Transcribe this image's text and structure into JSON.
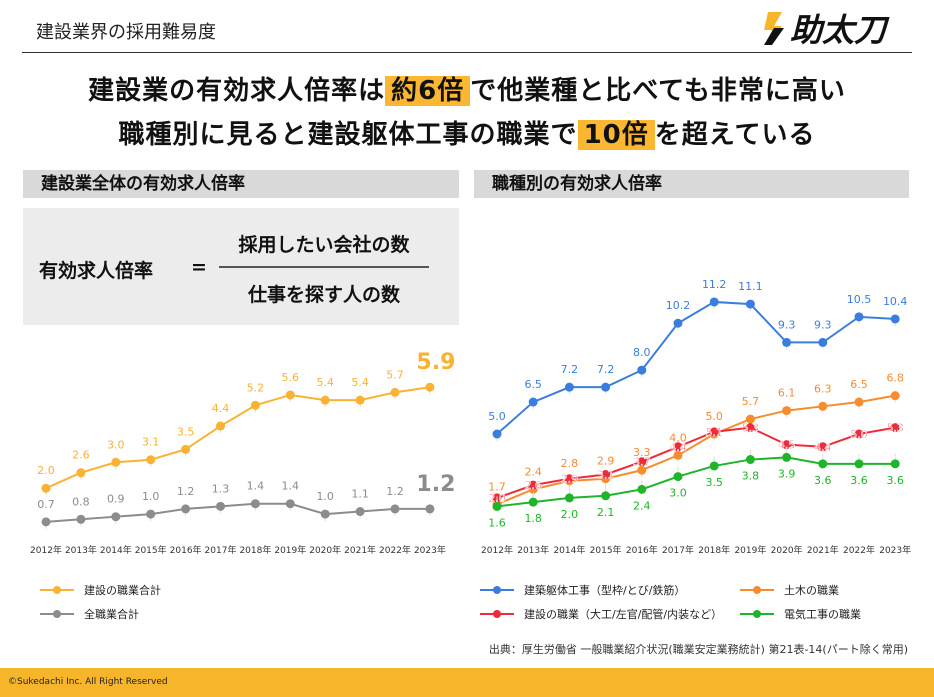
{
  "header": {
    "topic": "建設業界の採用難易度",
    "logo_text": "助太刀"
  },
  "headline": {
    "line1_pre": "建設業の有効求人倍率は",
    "line1_hl": "約6倍",
    "line1_post": "で他業種と比べても非常に高い",
    "line2_pre": "職種別に見ると建設躯体工事の職業で",
    "line2_hl": "10倍",
    "line2_post": "を超えている"
  },
  "left": {
    "section_title": "建設業全体の有効求人倍率",
    "formula": {
      "lhs": "有効求人倍率",
      "eq": "=",
      "numerator": "採用したい会社の数",
      "denominator": "仕事を探す人の数"
    }
  },
  "right": {
    "section_title": "職種別の有効求人倍率"
  },
  "chart_data": [
    {
      "type": "line",
      "categories": [
        "2012年",
        "2013年",
        "2014年",
        "2015年",
        "2016年",
        "2017年",
        "2018年",
        "2019年",
        "2020年",
        "2021年",
        "2022年",
        "2023年"
      ],
      "series": [
        {
          "name": "建設の職業合計",
          "color": "#f9b233",
          "values": [
            2.0,
            2.6,
            3.0,
            3.1,
            3.5,
            4.4,
            5.2,
            5.6,
            5.4,
            5.4,
            5.7,
            5.9
          ]
        },
        {
          "name": "全職業合計",
          "color": "#8c8c8c",
          "values": [
            0.7,
            0.8,
            0.9,
            1.0,
            1.2,
            1.3,
            1.4,
            1.4,
            1.0,
            1.1,
            1.2,
            1.2
          ]
        }
      ],
      "legend": "bottom"
    },
    {
      "type": "line",
      "categories": [
        "2012年",
        "2013年",
        "2014年",
        "2015年",
        "2016年",
        "2017年",
        "2018年",
        "2019年",
        "2020年",
        "2021年",
        "2022年",
        "2023年"
      ],
      "series": [
        {
          "name": "建築躯体工事（型枠/とび/鉄筋）",
          "color": "#3b7ddd",
          "values": [
            5.0,
            6.5,
            7.2,
            7.2,
            8.0,
            10.2,
            11.2,
            11.1,
            9.3,
            9.3,
            10.5,
            10.4
          ]
        },
        {
          "name": "土木の職業",
          "color": "#f78c2e",
          "values": [
            1.7,
            2.4,
            2.8,
            2.9,
            3.3,
            4.0,
            5.0,
            5.7,
            6.1,
            6.3,
            6.5,
            6.8
          ]
        },
        {
          "name": "建設の職業（大工/左官/配管/内装など）",
          "color": "#ee2b3b",
          "values": [
            2.0,
            2.6,
            2.9,
            3.1,
            3.7,
            4.4,
            5.1,
            5.3,
            4.5,
            4.4,
            5.0,
            5.3
          ]
        },
        {
          "name": "電気工事の職業",
          "color": "#1eb52a",
          "values": [
            1.6,
            1.8,
            2.0,
            2.1,
            2.4,
            3.0,
            3.5,
            3.8,
            3.9,
            3.6,
            3.6,
            3.6
          ]
        }
      ],
      "legend": "bottom"
    }
  ],
  "source": "出典：厚生労働省 一般職業紹介状況(職業安定業務統計) 第21表-14(パート除く常用)",
  "footer": {
    "copyright": "©Sukedachi Inc. All Right Reserved"
  }
}
